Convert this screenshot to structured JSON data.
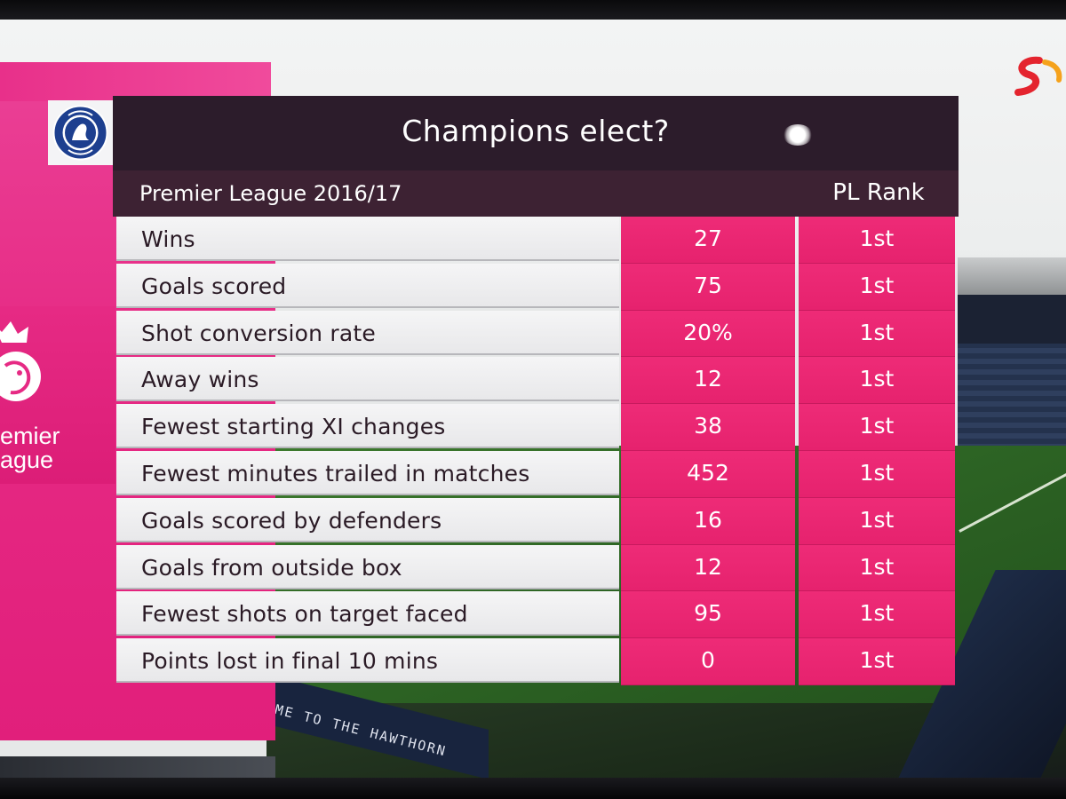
{
  "graphic": {
    "title": "Champions elect?",
    "competition": "Premier League 2016/17",
    "rank_header": "PL Rank"
  },
  "side_panel": {
    "logo_text_line1": "emier",
    "logo_text_line2": "ague"
  },
  "background": {
    "ad_text": "ME TO THE HAWTHORN"
  },
  "colors": {
    "title_bar": "#2c1c2b",
    "subhead_bar": "#3d2233",
    "stat_cell": "#eb2673",
    "side_panel": "#e62a84",
    "label_cell": "#f0f0f2"
  },
  "icons": {
    "club_badge": "chelsea-crest-icon",
    "league_logo": "premier-league-lion-icon",
    "broadcaster_logo": "supersport-logo-icon"
  },
  "stats": [
    {
      "label": "Wins",
      "value": "27",
      "rank": "1st"
    },
    {
      "label": "Goals scored",
      "value": "75",
      "rank": "1st"
    },
    {
      "label": "Shot conversion rate",
      "value": "20%",
      "rank": "1st"
    },
    {
      "label": "Away wins",
      "value": "12",
      "rank": "1st"
    },
    {
      "label": "Fewest starting XI changes",
      "value": "38",
      "rank": "1st"
    },
    {
      "label": "Fewest minutes trailed in matches",
      "value": "452",
      "rank": "1st"
    },
    {
      "label": "Goals scored by defenders",
      "value": "16",
      "rank": "1st"
    },
    {
      "label": "Goals from outside box",
      "value": "12",
      "rank": "1st"
    },
    {
      "label": "Fewest shots on target faced",
      "value": "95",
      "rank": "1st"
    },
    {
      "label": "Points lost in final 10 mins",
      "value": "0",
      "rank": "1st"
    }
  ]
}
